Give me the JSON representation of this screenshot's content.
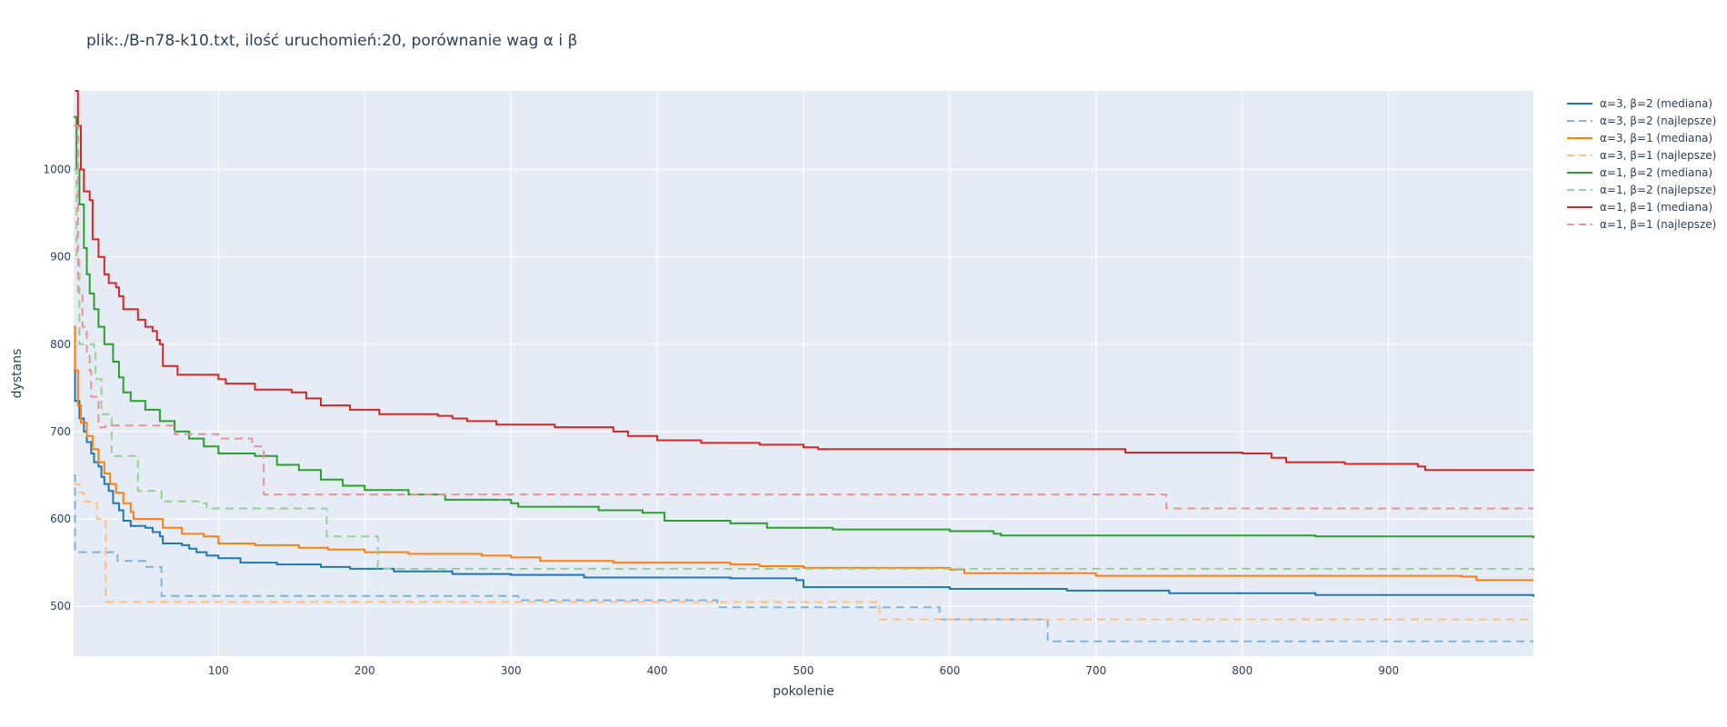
{
  "chart_data": {
    "type": "line",
    "title": "plik:./B-n78-k10.txt, ilość uruchomień:20, porównanie wag α i β",
    "xlabel": "pokolenie",
    "ylabel": "dystans",
    "xlim": [
      1,
      999
    ],
    "ylim": [
      443,
      1090
    ],
    "x_ticks": [
      100,
      200,
      300,
      400,
      500,
      600,
      700,
      800,
      900
    ],
    "y_ticks": [
      500,
      600,
      700,
      800,
      900,
      1000
    ],
    "grid": true,
    "legend_position": "top-right",
    "plot_background": "#e5ecf6",
    "series": [
      {
        "name": "α=3, β=2 (mediana)",
        "color": "#1f77b4",
        "dash": "solid",
        "points": [
          [
            1,
            770
          ],
          [
            2,
            735
          ],
          [
            5,
            715
          ],
          [
            8,
            700
          ],
          [
            10,
            688
          ],
          [
            13,
            675
          ],
          [
            15,
            665
          ],
          [
            18,
            660
          ],
          [
            20,
            648
          ],
          [
            22,
            640
          ],
          [
            25,
            632
          ],
          [
            28,
            618
          ],
          [
            32,
            610
          ],
          [
            35,
            598
          ],
          [
            40,
            592
          ],
          [
            50,
            590
          ],
          [
            55,
            585
          ],
          [
            60,
            580
          ],
          [
            62,
            572
          ],
          [
            75,
            570
          ],
          [
            80,
            566
          ],
          [
            85,
            562
          ],
          [
            92,
            558
          ],
          [
            100,
            555
          ],
          [
            115,
            550
          ],
          [
            140,
            548
          ],
          [
            170,
            545
          ],
          [
            190,
            543
          ],
          [
            220,
            540
          ],
          [
            260,
            537
          ],
          [
            300,
            536
          ],
          [
            350,
            533
          ],
          [
            450,
            532
          ],
          [
            495,
            530
          ],
          [
            500,
            522
          ],
          [
            600,
            520
          ],
          [
            680,
            518
          ],
          [
            750,
            515
          ],
          [
            850,
            513
          ],
          [
            999,
            511
          ]
        ]
      },
      {
        "name": "α=3, β=2 (najlepsze)",
        "color": "#7fb2de",
        "dash": "dashed",
        "points": [
          [
            1,
            650
          ],
          [
            2,
            562
          ],
          [
            30,
            562
          ],
          [
            31,
            552
          ],
          [
            48,
            552
          ],
          [
            50,
            545
          ],
          [
            60,
            545
          ],
          [
            61,
            512
          ],
          [
            300,
            512
          ],
          [
            305,
            507
          ],
          [
            440,
            507
          ],
          [
            441,
            499
          ],
          [
            592,
            499
          ],
          [
            593,
            485
          ],
          [
            665,
            485
          ],
          [
            667,
            460
          ],
          [
            999,
            460
          ]
        ]
      },
      {
        "name": "α=3, β=1 (mediana)",
        "color": "#ff7f0e",
        "dash": "solid",
        "points": [
          [
            1,
            820
          ],
          [
            2,
            770
          ],
          [
            4,
            730
          ],
          [
            6,
            710
          ],
          [
            10,
            695
          ],
          [
            14,
            680
          ],
          [
            18,
            665
          ],
          [
            22,
            652
          ],
          [
            26,
            640
          ],
          [
            30,
            630
          ],
          [
            35,
            618
          ],
          [
            40,
            608
          ],
          [
            42,
            600
          ],
          [
            62,
            590
          ],
          [
            75,
            583
          ],
          [
            90,
            580
          ],
          [
            100,
            572
          ],
          [
            125,
            570
          ],
          [
            155,
            567
          ],
          [
            175,
            565
          ],
          [
            200,
            562
          ],
          [
            230,
            560
          ],
          [
            280,
            558
          ],
          [
            300,
            556
          ],
          [
            320,
            552
          ],
          [
            370,
            550
          ],
          [
            450,
            548
          ],
          [
            470,
            546
          ],
          [
            500,
            544
          ],
          [
            600,
            542
          ],
          [
            610,
            538
          ],
          [
            700,
            535
          ],
          [
            850,
            535
          ],
          [
            950,
            534
          ],
          [
            960,
            530
          ],
          [
            999,
            530
          ]
        ]
      },
      {
        "name": "α=3, β=1 (najlepsze)",
        "color": "#ffbf86",
        "dash": "dashed",
        "points": [
          [
            1,
            640
          ],
          [
            5,
            630
          ],
          [
            8,
            620
          ],
          [
            16,
            618
          ],
          [
            17,
            600
          ],
          [
            22,
            600
          ],
          [
            23,
            505
          ],
          [
            550,
            505
          ],
          [
            552,
            485
          ],
          [
            999,
            485
          ]
        ]
      },
      {
        "name": "α=1, β=2 (mediana)",
        "color": "#2ca02c",
        "dash": "solid",
        "points": [
          [
            1,
            1060
          ],
          [
            3,
            1000
          ],
          [
            5,
            960
          ],
          [
            8,
            910
          ],
          [
            10,
            880
          ],
          [
            12,
            858
          ],
          [
            15,
            840
          ],
          [
            18,
            820
          ],
          [
            22,
            800
          ],
          [
            28,
            780
          ],
          [
            32,
            762
          ],
          [
            35,
            745
          ],
          [
            40,
            735
          ],
          [
            50,
            725
          ],
          [
            60,
            712
          ],
          [
            70,
            700
          ],
          [
            80,
            692
          ],
          [
            90,
            683
          ],
          [
            100,
            675
          ],
          [
            125,
            672
          ],
          [
            140,
            662
          ],
          [
            155,
            656
          ],
          [
            170,
            645
          ],
          [
            185,
            638
          ],
          [
            200,
            633
          ],
          [
            230,
            628
          ],
          [
            255,
            622
          ],
          [
            300,
            618
          ],
          [
            305,
            614
          ],
          [
            360,
            610
          ],
          [
            390,
            607
          ],
          [
            405,
            598
          ],
          [
            450,
            595
          ],
          [
            475,
            590
          ],
          [
            520,
            588
          ],
          [
            600,
            586
          ],
          [
            630,
            583
          ],
          [
            635,
            581
          ],
          [
            750,
            581
          ],
          [
            850,
            580
          ],
          [
            999,
            578
          ]
        ]
      },
      {
        "name": "α=1, β=2 (najlepsze)",
        "color": "#95d095",
        "dash": "dashed",
        "points": [
          [
            1,
            1000
          ],
          [
            3,
            900
          ],
          [
            5,
            800
          ],
          [
            15,
            795
          ],
          [
            16,
            760
          ],
          [
            20,
            720
          ],
          [
            25,
            715
          ],
          [
            27,
            672
          ],
          [
            43,
            672
          ],
          [
            45,
            632
          ],
          [
            60,
            632
          ],
          [
            61,
            620
          ],
          [
            90,
            618
          ],
          [
            92,
            612
          ],
          [
            172,
            612
          ],
          [
            174,
            580
          ],
          [
            208,
            580
          ],
          [
            209,
            543
          ],
          [
            999,
            541
          ]
        ]
      },
      {
        "name": "α=1, β=1 (mediana)",
        "color": "#d62728",
        "dash": "solid",
        "points": [
          [
            2,
            1090
          ],
          [
            4,
            1050
          ],
          [
            6,
            1000
          ],
          [
            8,
            975
          ],
          [
            12,
            965
          ],
          [
            14,
            920
          ],
          [
            18,
            900
          ],
          [
            22,
            880
          ],
          [
            25,
            870
          ],
          [
            30,
            865
          ],
          [
            32,
            855
          ],
          [
            35,
            840
          ],
          [
            45,
            828
          ],
          [
            50,
            820
          ],
          [
            55,
            815
          ],
          [
            58,
            805
          ],
          [
            60,
            800
          ],
          [
            62,
            775
          ],
          [
            72,
            765
          ],
          [
            100,
            760
          ],
          [
            105,
            755
          ],
          [
            125,
            748
          ],
          [
            150,
            745
          ],
          [
            160,
            738
          ],
          [
            170,
            730
          ],
          [
            190,
            725
          ],
          [
            210,
            720
          ],
          [
            250,
            718
          ],
          [
            260,
            715
          ],
          [
            270,
            712
          ],
          [
            290,
            708
          ],
          [
            330,
            705
          ],
          [
            370,
            700
          ],
          [
            380,
            695
          ],
          [
            400,
            690
          ],
          [
            430,
            687
          ],
          [
            470,
            685
          ],
          [
            500,
            682
          ],
          [
            510,
            680
          ],
          [
            700,
            680
          ],
          [
            720,
            676
          ],
          [
            800,
            675
          ],
          [
            820,
            670
          ],
          [
            830,
            665
          ],
          [
            870,
            663
          ],
          [
            920,
            660
          ],
          [
            925,
            656
          ],
          [
            999,
            655
          ]
        ]
      },
      {
        "name": "α=1, β=1 (najlepsze)",
        "color": "#e89394",
        "dash": "dashed",
        "points": [
          [
            1,
            1050
          ],
          [
            4,
            860
          ],
          [
            7,
            820
          ],
          [
            10,
            790
          ],
          [
            12,
            770
          ],
          [
            13,
            740
          ],
          [
            18,
            705
          ],
          [
            22,
            705
          ],
          [
            23,
            707
          ],
          [
            65,
            707
          ],
          [
            70,
            697
          ],
          [
            95,
            697
          ],
          [
            100,
            692
          ],
          [
            120,
            692
          ],
          [
            123,
            683
          ],
          [
            130,
            683
          ],
          [
            131,
            628
          ],
          [
            745,
            628
          ],
          [
            748,
            612
          ],
          [
            999,
            612
          ]
        ]
      }
    ]
  }
}
